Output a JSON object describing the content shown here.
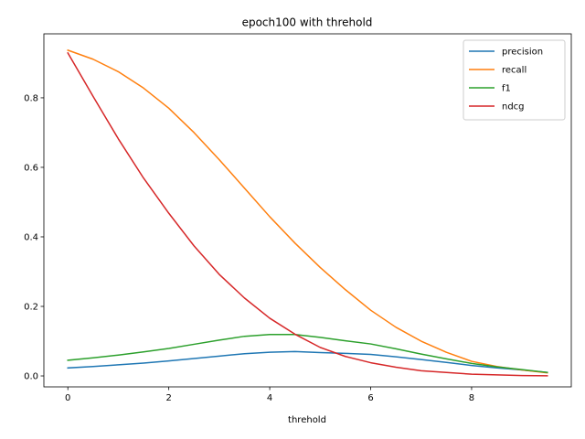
{
  "chart_data": {
    "type": "line",
    "title": "epoch100 with threhold",
    "xlabel": "threhold",
    "ylabel": "",
    "xlim": [
      -0.475,
      9.975
    ],
    "ylim": [
      -0.0315,
      0.984
    ],
    "xticks": [
      0,
      2,
      4,
      6,
      8
    ],
    "yticks": [
      0.0,
      0.2,
      0.4,
      0.6,
      0.8
    ],
    "xtick_labels": [
      "0",
      "2",
      "4",
      "6",
      "8"
    ],
    "ytick_labels": [
      "0.0",
      "0.2",
      "0.4",
      "0.6",
      "0.8"
    ],
    "grid": false,
    "legend_position": "top-right",
    "x": [
      0,
      0.5,
      1,
      1.5,
      2,
      2.5,
      3,
      3.5,
      4,
      4.5,
      5,
      5.5,
      6,
      6.5,
      7,
      7.5,
      8,
      8.5,
      9,
      9.5
    ],
    "series": [
      {
        "name": "precision",
        "color": "#1f77b4",
        "values": [
          0.023,
          0.027,
          0.032,
          0.037,
          0.043,
          0.05,
          0.057,
          0.064,
          0.068,
          0.07,
          0.067,
          0.065,
          0.062,
          0.055,
          0.047,
          0.039,
          0.03,
          0.023,
          0.017,
          0.01
        ]
      },
      {
        "name": "recall",
        "color": "#ff7f0e",
        "values": [
          0.937,
          0.911,
          0.875,
          0.828,
          0.77,
          0.7,
          0.622,
          0.54,
          0.458,
          0.382,
          0.312,
          0.248,
          0.189,
          0.14,
          0.1,
          0.068,
          0.042,
          0.027,
          0.017,
          0.009
        ]
      },
      {
        "name": "f1",
        "color": "#2ca02c",
        "values": [
          0.045,
          0.052,
          0.06,
          0.069,
          0.079,
          0.091,
          0.103,
          0.114,
          0.119,
          0.119,
          0.111,
          0.101,
          0.092,
          0.078,
          0.063,
          0.049,
          0.036,
          0.026,
          0.018,
          0.01
        ]
      },
      {
        "name": "ndcg",
        "color": "#d62728",
        "values": [
          0.929,
          0.804,
          0.682,
          0.569,
          0.468,
          0.374,
          0.292,
          0.224,
          0.166,
          0.12,
          0.082,
          0.056,
          0.038,
          0.025,
          0.015,
          0.01,
          0.005,
          0.003,
          0.001,
          0.0005
        ]
      }
    ]
  }
}
